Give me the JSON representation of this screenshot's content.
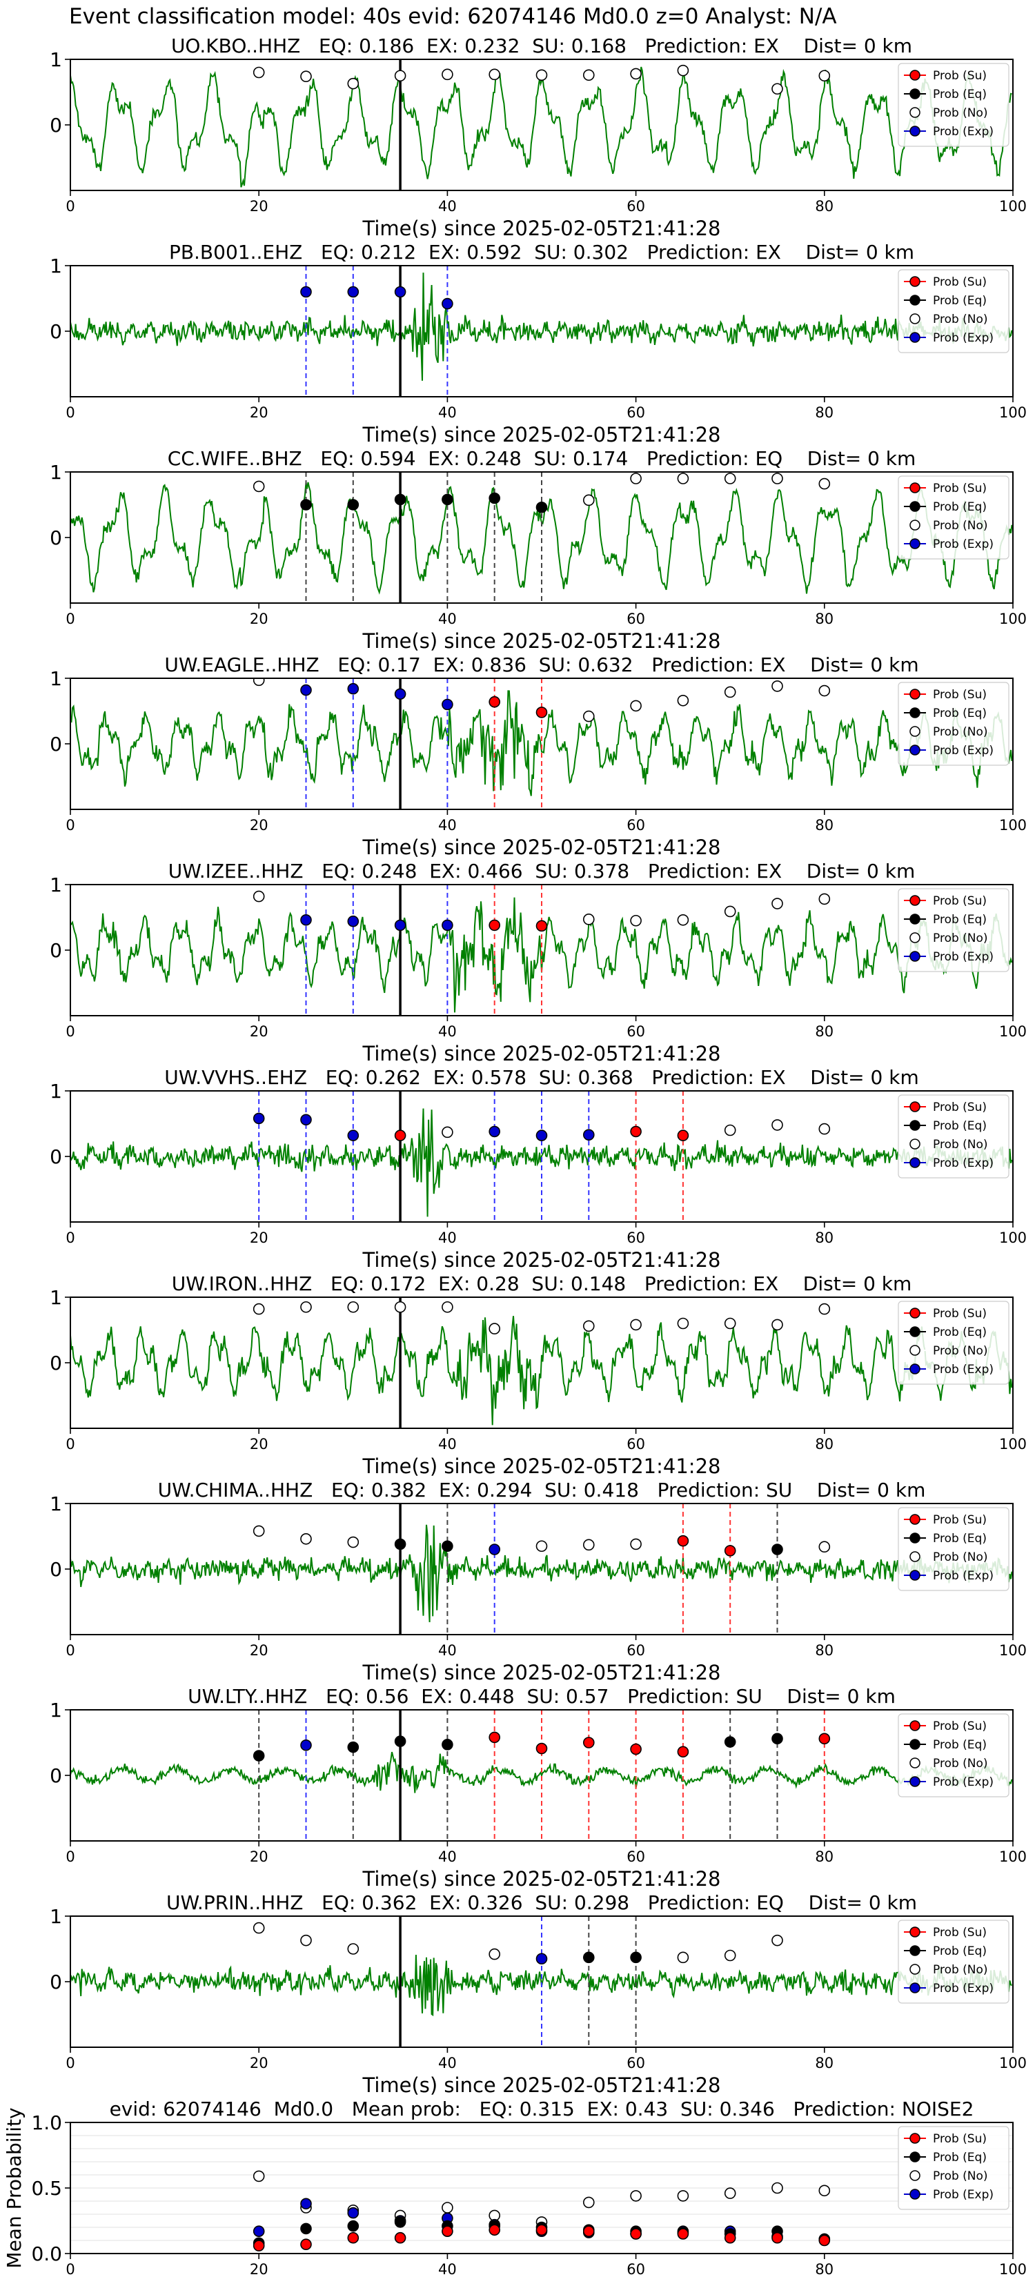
{
  "suptitle": "Event classification model: 40s evid: 62074146 Md0.0 z=0 Analyst: N/A",
  "colors": {
    "waveform": "#008000",
    "su": "#ff0000",
    "eq": "#000000",
    "no": "#ffffff",
    "exp": "#0000cc",
    "su_line": "#ff3333",
    "eq_line": "#444444",
    "exp_line": "#3333ff",
    "event_line": "#000000"
  },
  "legend": {
    "entries": [
      {
        "label": "Prob (Su)",
        "key": "su"
      },
      {
        "label": "Prob (Eq)",
        "key": "eq"
      },
      {
        "label": "Prob (No)",
        "key": "no"
      },
      {
        "label": "Prob (Exp)",
        "key": "exp"
      }
    ],
    "placement": "top-right"
  },
  "chart_data": [
    {
      "type": "line",
      "title": "UO.KBO..HHZ   EQ: 0.186  EX: 0.232  SU: 0.168   Prediction: EX    Dist= 0 km",
      "xlabel": "Time(s) since 2025-02-05T21:41:28",
      "xlim": [
        0,
        100
      ],
      "ylim": [
        -1,
        1
      ],
      "xticks": [
        0,
        20,
        40,
        60,
        80,
        100
      ],
      "yticks": [
        0,
        1
      ],
      "event_time": 35,
      "waveform": {
        "style": "smooth",
        "seed": 11
      },
      "points": [
        {
          "t": 20,
          "cls": "no",
          "p": 0.8
        },
        {
          "t": 25,
          "cls": "no",
          "p": 0.74
        },
        {
          "t": 30,
          "cls": "no",
          "p": 0.63
        },
        {
          "t": 35,
          "cls": "no",
          "p": 0.75
        },
        {
          "t": 40,
          "cls": "no",
          "p": 0.77
        },
        {
          "t": 45,
          "cls": "no",
          "p": 0.77
        },
        {
          "t": 50,
          "cls": "no",
          "p": 0.76
        },
        {
          "t": 55,
          "cls": "no",
          "p": 0.76
        },
        {
          "t": 60,
          "cls": "no",
          "p": 0.78
        },
        {
          "t": 65,
          "cls": "no",
          "p": 0.83
        },
        {
          "t": 75,
          "cls": "no",
          "p": 0.55
        },
        {
          "t": 80,
          "cls": "no",
          "p": 0.75
        }
      ]
    },
    {
      "type": "line",
      "title": "PB.B001..EHZ   EQ: 0.212  EX: 0.592  SU: 0.302   Prediction: EX    Dist= 0 km",
      "xlabel": "Time(s) since 2025-02-05T21:41:28",
      "xlim": [
        0,
        100
      ],
      "ylim": [
        -1,
        1
      ],
      "xticks": [
        0,
        20,
        40,
        60,
        80,
        100
      ],
      "yticks": [
        0,
        1
      ],
      "event_time": 35,
      "waveform": {
        "style": "noise",
        "seed": 23
      },
      "points": [
        {
          "t": 25,
          "cls": "exp",
          "p": 0.6
        },
        {
          "t": 30,
          "cls": "exp",
          "p": 0.6
        },
        {
          "t": 35,
          "cls": "exp",
          "p": 0.6
        },
        {
          "t": 40,
          "cls": "exp",
          "p": 0.42
        }
      ]
    },
    {
      "type": "line",
      "title": "CC.WIFE..BHZ   EQ: 0.594  EX: 0.248  SU: 0.174   Prediction: EQ    Dist= 0 km",
      "xlabel": "Time(s) since 2025-02-05T21:41:28",
      "xlim": [
        0,
        100
      ],
      "ylim": [
        -1,
        1
      ],
      "xticks": [
        0,
        20,
        40,
        60,
        80,
        100
      ],
      "yticks": [
        0,
        1
      ],
      "event_time": 35,
      "waveform": {
        "style": "smooth",
        "seed": 37
      },
      "points": [
        {
          "t": 20,
          "cls": "no",
          "p": 0.78
        },
        {
          "t": 25,
          "cls": "eq",
          "p": 0.5
        },
        {
          "t": 30,
          "cls": "eq",
          "p": 0.5
        },
        {
          "t": 35,
          "cls": "eq",
          "p": 0.58
        },
        {
          "t": 40,
          "cls": "eq",
          "p": 0.58
        },
        {
          "t": 45,
          "cls": "eq",
          "p": 0.6
        },
        {
          "t": 50,
          "cls": "eq",
          "p": 0.46
        },
        {
          "t": 55,
          "cls": "no",
          "p": 0.57
        },
        {
          "t": 60,
          "cls": "no",
          "p": 0.9
        },
        {
          "t": 65,
          "cls": "no",
          "p": 0.9
        },
        {
          "t": 70,
          "cls": "no",
          "p": 0.9
        },
        {
          "t": 75,
          "cls": "no",
          "p": 0.9
        },
        {
          "t": 80,
          "cls": "no",
          "p": 0.82
        }
      ]
    },
    {
      "type": "line",
      "title": "UW.EAGLE..HHZ   EQ: 0.17  EX: 0.836  SU: 0.632   Prediction: EX    Dist= 0 km",
      "xlabel": "Time(s) since 2025-02-05T21:41:28",
      "xlim": [
        0,
        100
      ],
      "ylim": [
        -1,
        1
      ],
      "xticks": [
        0,
        20,
        40,
        60,
        80,
        100
      ],
      "yticks": [
        0,
        1
      ],
      "event_time": 35,
      "waveform": {
        "style": "mixed",
        "seed": 41
      },
      "points": [
        {
          "t": 20,
          "cls": "no",
          "p": 0.97
        },
        {
          "t": 25,
          "cls": "exp",
          "p": 0.82
        },
        {
          "t": 30,
          "cls": "exp",
          "p": 0.84
        },
        {
          "t": 35,
          "cls": "exp",
          "p": 0.76
        },
        {
          "t": 40,
          "cls": "exp",
          "p": 0.6
        },
        {
          "t": 45,
          "cls": "su",
          "p": 0.64
        },
        {
          "t": 50,
          "cls": "su",
          "p": 0.48
        },
        {
          "t": 55,
          "cls": "no",
          "p": 0.42
        },
        {
          "t": 60,
          "cls": "no",
          "p": 0.58
        },
        {
          "t": 65,
          "cls": "no",
          "p": 0.66
        },
        {
          "t": 70,
          "cls": "no",
          "p": 0.79
        },
        {
          "t": 75,
          "cls": "no",
          "p": 0.88
        },
        {
          "t": 80,
          "cls": "no",
          "p": 0.81
        }
      ]
    },
    {
      "type": "line",
      "title": "UW.IZEE..HHZ   EQ: 0.248  EX: 0.466  SU: 0.378   Prediction: EX    Dist= 0 km",
      "xlabel": "Time(s) since 2025-02-05T21:41:28",
      "xlim": [
        0,
        100
      ],
      "ylim": [
        -1,
        1
      ],
      "xticks": [
        0,
        20,
        40,
        60,
        80,
        100
      ],
      "yticks": [
        0,
        1
      ],
      "event_time": 35,
      "waveform": {
        "style": "mixed",
        "seed": 53
      },
      "points": [
        {
          "t": 20,
          "cls": "no",
          "p": 0.82
        },
        {
          "t": 25,
          "cls": "exp",
          "p": 0.46
        },
        {
          "t": 30,
          "cls": "exp",
          "p": 0.44
        },
        {
          "t": 35,
          "cls": "exp",
          "p": 0.38
        },
        {
          "t": 40,
          "cls": "exp",
          "p": 0.38
        },
        {
          "t": 45,
          "cls": "su",
          "p": 0.38
        },
        {
          "t": 50,
          "cls": "su",
          "p": 0.37
        },
        {
          "t": 55,
          "cls": "no",
          "p": 0.47
        },
        {
          "t": 60,
          "cls": "no",
          "p": 0.45
        },
        {
          "t": 65,
          "cls": "no",
          "p": 0.46
        },
        {
          "t": 70,
          "cls": "no",
          "p": 0.59
        },
        {
          "t": 75,
          "cls": "no",
          "p": 0.71
        },
        {
          "t": 80,
          "cls": "no",
          "p": 0.78
        }
      ]
    },
    {
      "type": "line",
      "title": "UW.VVHS..EHZ   EQ: 0.262  EX: 0.578  SU: 0.368   Prediction: EX    Dist= 0 km",
      "xlabel": "Time(s) since 2025-02-05T21:41:28",
      "xlim": [
        0,
        100
      ],
      "ylim": [
        -1,
        1
      ],
      "xticks": [
        0,
        20,
        40,
        60,
        80,
        100
      ],
      "yticks": [
        0,
        1
      ],
      "event_time": 35,
      "waveform": {
        "style": "noise",
        "seed": 67
      },
      "points": [
        {
          "t": 20,
          "cls": "exp",
          "p": 0.58
        },
        {
          "t": 25,
          "cls": "exp",
          "p": 0.56
        },
        {
          "t": 30,
          "cls": "exp",
          "p": 0.32
        },
        {
          "t": 35,
          "cls": "su",
          "p": 0.32
        },
        {
          "t": 40,
          "cls": "no",
          "p": 0.37
        },
        {
          "t": 45,
          "cls": "exp",
          "p": 0.38
        },
        {
          "t": 50,
          "cls": "exp",
          "p": 0.32
        },
        {
          "t": 55,
          "cls": "exp",
          "p": 0.33
        },
        {
          "t": 60,
          "cls": "su",
          "p": 0.38
        },
        {
          "t": 65,
          "cls": "su",
          "p": 0.32
        },
        {
          "t": 70,
          "cls": "no",
          "p": 0.4
        },
        {
          "t": 75,
          "cls": "no",
          "p": 0.48
        },
        {
          "t": 80,
          "cls": "no",
          "p": 0.42
        }
      ]
    },
    {
      "type": "line",
      "title": "UW.IRON..HHZ   EQ: 0.172  EX: 0.28  SU: 0.148   Prediction: EX    Dist= 0 km",
      "xlabel": "Time(s) since 2025-02-05T21:41:28",
      "xlim": [
        0,
        100
      ],
      "ylim": [
        -1,
        1
      ],
      "xticks": [
        0,
        20,
        40,
        60,
        80,
        100
      ],
      "yticks": [
        0,
        1
      ],
      "event_time": 35,
      "waveform": {
        "style": "mixed",
        "seed": 79
      },
      "points": [
        {
          "t": 20,
          "cls": "no",
          "p": 0.82
        },
        {
          "t": 25,
          "cls": "no",
          "p": 0.85
        },
        {
          "t": 30,
          "cls": "no",
          "p": 0.85
        },
        {
          "t": 35,
          "cls": "no",
          "p": 0.85
        },
        {
          "t": 40,
          "cls": "no",
          "p": 0.85
        },
        {
          "t": 45,
          "cls": "no",
          "p": 0.52
        },
        {
          "t": 55,
          "cls": "no",
          "p": 0.56
        },
        {
          "t": 60,
          "cls": "no",
          "p": 0.58
        },
        {
          "t": 65,
          "cls": "no",
          "p": 0.6
        },
        {
          "t": 70,
          "cls": "no",
          "p": 0.6
        },
        {
          "t": 75,
          "cls": "no",
          "p": 0.58
        },
        {
          "t": 80,
          "cls": "no",
          "p": 0.82
        }
      ]
    },
    {
      "type": "line",
      "title": "UW.CHIMA..HHZ   EQ: 0.382  EX: 0.294  SU: 0.418   Prediction: SU    Dist= 0 km",
      "xlabel": "Time(s) since 2025-02-05T21:41:28",
      "xlim": [
        0,
        100
      ],
      "ylim": [
        -1,
        1
      ],
      "xticks": [
        0,
        20,
        40,
        60,
        80,
        100
      ],
      "yticks": [
        0,
        1
      ],
      "event_time": 35,
      "waveform": {
        "style": "noise",
        "seed": 83
      },
      "points": [
        {
          "t": 20,
          "cls": "no",
          "p": 0.58
        },
        {
          "t": 25,
          "cls": "no",
          "p": 0.46
        },
        {
          "t": 30,
          "cls": "no",
          "p": 0.41
        },
        {
          "t": 35,
          "cls": "eq",
          "p": 0.38
        },
        {
          "t": 40,
          "cls": "eq",
          "p": 0.35
        },
        {
          "t": 45,
          "cls": "exp",
          "p": 0.3
        },
        {
          "t": 50,
          "cls": "no",
          "p": 0.35
        },
        {
          "t": 55,
          "cls": "no",
          "p": 0.37
        },
        {
          "t": 60,
          "cls": "no",
          "p": 0.38
        },
        {
          "t": 65,
          "cls": "su",
          "p": 0.43
        },
        {
          "t": 70,
          "cls": "su",
          "p": 0.28
        },
        {
          "t": 75,
          "cls": "eq",
          "p": 0.3
        },
        {
          "t": 80,
          "cls": "no",
          "p": 0.34
        }
      ]
    },
    {
      "type": "line",
      "title": "UW.LTY..HHZ   EQ: 0.56  EX: 0.448  SU: 0.57   Prediction: SU    Dist= 0 km",
      "xlabel": "Time(s) since 2025-02-05T21:41:28",
      "xlim": [
        0,
        100
      ],
      "ylim": [
        -1,
        1
      ],
      "xticks": [
        0,
        20,
        40,
        60,
        80,
        100
      ],
      "yticks": [
        0,
        1
      ],
      "event_time": 35,
      "waveform": {
        "style": "quiet",
        "seed": 97
      },
      "points": [
        {
          "t": 20,
          "cls": "eq",
          "p": 0.3
        },
        {
          "t": 25,
          "cls": "exp",
          "p": 0.46
        },
        {
          "t": 30,
          "cls": "eq",
          "p": 0.43
        },
        {
          "t": 35,
          "cls": "eq",
          "p": 0.52
        },
        {
          "t": 40,
          "cls": "eq",
          "p": 0.47
        },
        {
          "t": 45,
          "cls": "su",
          "p": 0.58
        },
        {
          "t": 50,
          "cls": "su",
          "p": 0.41
        },
        {
          "t": 55,
          "cls": "su",
          "p": 0.5
        },
        {
          "t": 60,
          "cls": "su",
          "p": 0.4
        },
        {
          "t": 65,
          "cls": "su",
          "p": 0.36
        },
        {
          "t": 70,
          "cls": "eq",
          "p": 0.51
        },
        {
          "t": 75,
          "cls": "eq",
          "p": 0.56
        },
        {
          "t": 80,
          "cls": "su",
          "p": 0.56
        }
      ]
    },
    {
      "type": "line",
      "title": "UW.PRIN..HHZ   EQ: 0.362  EX: 0.326  SU: 0.298   Prediction: EQ    Dist= 0 km",
      "xlabel": "Time(s) since 2025-02-05T21:41:28",
      "xlim": [
        0,
        100
      ],
      "ylim": [
        -1,
        1
      ],
      "xticks": [
        0,
        20,
        40,
        60,
        80,
        100
      ],
      "yticks": [
        0,
        1
      ],
      "event_time": 35,
      "waveform": {
        "style": "noise",
        "seed": 103
      },
      "points": [
        {
          "t": 20,
          "cls": "no",
          "p": 0.82
        },
        {
          "t": 25,
          "cls": "no",
          "p": 0.63
        },
        {
          "t": 30,
          "cls": "no",
          "p": 0.5
        },
        {
          "t": 45,
          "cls": "no",
          "p": 0.42
        },
        {
          "t": 50,
          "cls": "exp",
          "p": 0.35
        },
        {
          "t": 55,
          "cls": "eq",
          "p": 0.37
        },
        {
          "t": 60,
          "cls": "eq",
          "p": 0.37
        },
        {
          "t": 65,
          "cls": "no",
          "p": 0.37
        },
        {
          "t": 70,
          "cls": "no",
          "p": 0.4
        },
        {
          "t": 75,
          "cls": "no",
          "p": 0.63
        }
      ]
    },
    {
      "type": "scatter",
      "title": "evid: 62074146  Md0.0   Mean prob:   EQ: 0.315  EX: 0.43  SU: 0.346   Prediction: NOISE2",
      "ylabel": "Mean Probability",
      "xlim": [
        0,
        100
      ],
      "ylim": [
        0,
        1
      ],
      "xticks": [
        0,
        20,
        40,
        60,
        80,
        100
      ],
      "yticks": [
        "0.0",
        "0.5",
        "1.0"
      ],
      "grid": true,
      "x": [
        20,
        25,
        30,
        35,
        40,
        45,
        50,
        55,
        60,
        65,
        70,
        75,
        80
      ],
      "series": [
        {
          "name": "Prob (Su)",
          "key": "su",
          "values": [
            0.06,
            0.07,
            0.12,
            0.12,
            0.17,
            0.18,
            0.18,
            0.17,
            0.15,
            0.15,
            0.12,
            0.12,
            0.1
          ]
        },
        {
          "name": "Prob (Eq)",
          "key": "eq",
          "values": [
            0.08,
            0.19,
            0.21,
            0.24,
            0.21,
            0.21,
            0.2,
            0.18,
            0.17,
            0.16,
            0.15,
            0.17,
            0.11
          ]
        },
        {
          "name": "Prob (No)",
          "key": "no",
          "values": [
            0.59,
            0.35,
            0.33,
            0.29,
            0.35,
            0.29,
            0.24,
            0.39,
            0.44,
            0.44,
            0.46,
            0.5,
            0.48
          ]
        },
        {
          "name": "Prob (Exp)",
          "key": "exp",
          "values": [
            0.17,
            0.38,
            0.31,
            0.25,
            0.27,
            0.22,
            0.17,
            0.16,
            0.15,
            0.17,
            0.17,
            0.13,
            0.11
          ]
        }
      ]
    }
  ]
}
